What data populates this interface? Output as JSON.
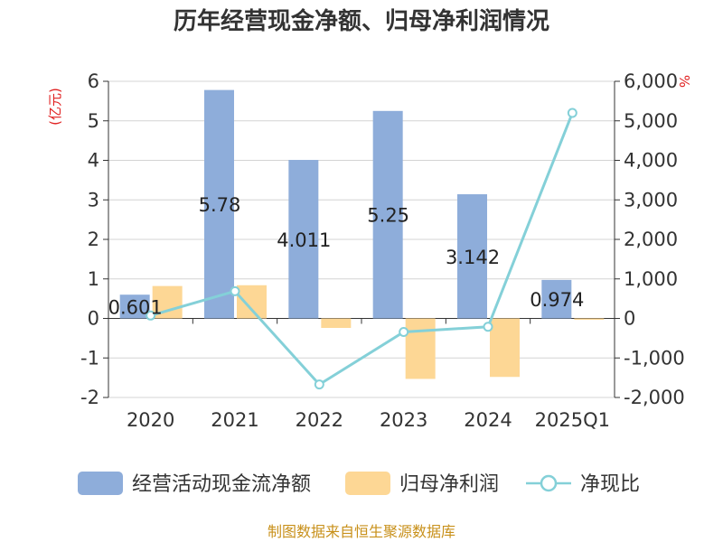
{
  "chart_data": {
    "type": "bar",
    "title": "历年经营现金净额、归母净利润情况",
    "categories": [
      "2020",
      "2021",
      "2022",
      "2023",
      "2024",
      "2025Q1"
    ],
    "series": [
      {
        "name": "经营活动现金流净额",
        "kind": "bar",
        "axis": "left",
        "color": "#8eadda",
        "values": [
          0.601,
          5.78,
          4.011,
          5.25,
          3.142,
          0.974
        ]
      },
      {
        "name": "归母净利润",
        "kind": "bar",
        "axis": "left",
        "color": "#fdd795",
        "values": [
          0.82,
          0.84,
          -0.24,
          -1.53,
          -1.48,
          -0.01
        ]
      },
      {
        "name": "净现比",
        "kind": "line",
        "axis": "right",
        "color": "#84d0d8",
        "values": [
          73,
          688,
          -1671,
          -343,
          -212,
          5200
        ]
      }
    ],
    "data_labels": [
      "0.601",
      "5.78",
      "4.011",
      "5.25",
      "3.142",
      "0.974"
    ],
    "y_left": {
      "unit": "(亿元)",
      "min": -2,
      "max": 6,
      "ticks": [
        "6",
        "5",
        "4",
        "3",
        "2",
        "1",
        "0",
        "-1",
        "-2"
      ]
    },
    "y_right": {
      "unit": "%",
      "min": -2000,
      "max": 6000,
      "ticks": [
        "6,000",
        "5,000",
        "4,000",
        "3,000",
        "2,000",
        "1,000",
        "0",
        "-1,000",
        "-2,000"
      ]
    },
    "grid": true,
    "legend_position": "bottom"
  },
  "source": "制图数据来自恒生聚源数据库"
}
